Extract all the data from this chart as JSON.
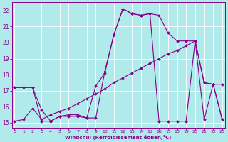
{
  "line1_x": [
    0,
    1,
    2,
    3,
    4,
    5,
    6,
    7,
    8,
    9,
    10,
    11,
    12,
    13,
    14,
    15,
    16,
    17,
    18,
    19,
    20,
    21,
    22,
    23
  ],
  "line1_y": [
    17.2,
    17.2,
    17.2,
    15.8,
    15.1,
    15.4,
    15.4,
    15.4,
    15.3,
    15.3,
    18.2,
    20.5,
    22.1,
    21.8,
    21.7,
    21.8,
    21.7,
    20.6,
    20.1,
    20.1,
    20.1,
    17.5,
    17.4,
    17.4
  ],
  "line2_x": [
    0,
    1,
    2,
    3,
    4,
    5,
    6,
    7,
    8,
    9,
    10,
    11,
    12,
    13,
    14,
    15,
    16,
    17,
    18,
    19,
    20,
    21,
    22,
    23
  ],
  "line2_y": [
    17.2,
    17.2,
    17.2,
    15.1,
    15.1,
    15.4,
    15.5,
    15.5,
    15.3,
    17.3,
    18.1,
    20.5,
    22.1,
    21.8,
    21.7,
    21.8,
    15.1,
    15.1,
    15.1,
    15.1,
    20.1,
    17.5,
    17.4,
    15.2
  ],
  "line3_x": [
    0,
    1,
    2,
    3,
    4,
    5,
    6,
    7,
    8,
    9,
    10,
    11,
    12,
    13,
    14,
    15,
    16,
    17,
    18,
    19,
    20,
    21,
    22,
    23
  ],
  "line3_y": [
    15.1,
    15.2,
    15.9,
    15.2,
    15.5,
    15.7,
    15.9,
    16.2,
    16.5,
    16.8,
    17.1,
    17.5,
    17.8,
    18.1,
    18.4,
    18.7,
    19.0,
    19.3,
    19.5,
    19.8,
    20.1,
    15.2,
    17.4,
    15.2
  ],
  "color": "#880088",
  "bg_color": "#b0eaea",
  "grid_color": "#cceeee",
  "xlabel": "Windchill (Refroidissement éolien,°C)",
  "xlim": [
    -0.3,
    23.3
  ],
  "ylim": [
    14.7,
    22.5
  ],
  "yticks": [
    15,
    16,
    17,
    18,
    19,
    20,
    21,
    22
  ],
  "xticks": [
    0,
    1,
    2,
    3,
    4,
    5,
    6,
    7,
    8,
    9,
    10,
    11,
    12,
    13,
    14,
    15,
    16,
    17,
    18,
    19,
    20,
    21,
    22,
    23
  ],
  "marker": "D",
  "markersize": 1.8,
  "linewidth": 0.8
}
